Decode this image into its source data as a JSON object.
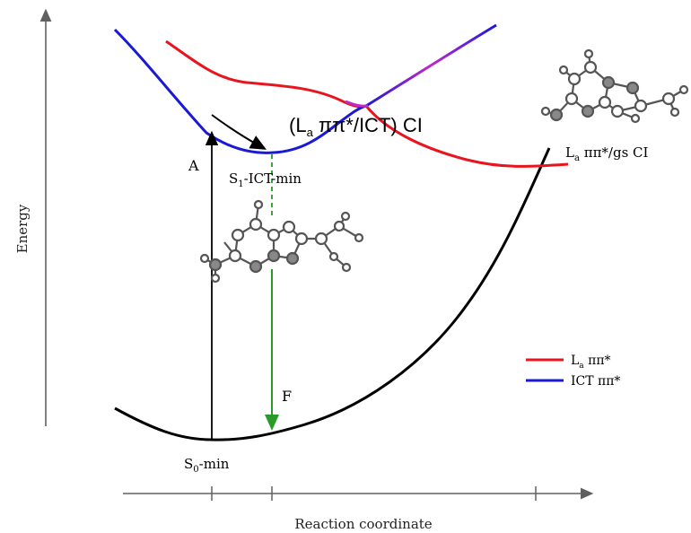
{
  "axes": {
    "y_label": "Energy",
    "x_label": "Reaction coordinate"
  },
  "labels": {
    "ci_la_ict_main": "(L",
    "ci_la_ict_sub": "a",
    "ci_la_ict_rest": " ππ*/ICT) CI",
    "s1_main": "S",
    "s1_sub": "1",
    "s1_rest": "-ICT-min",
    "s0_main": "S",
    "s0_sub": "0",
    "s0_rest": "-min",
    "la_gs_main": "L",
    "la_gs_sub": "a",
    "la_gs_rest": " ππ*/gs CI",
    "absorption": "A",
    "fluorescence": "F"
  },
  "legend": {
    "items": [
      {
        "main": "L",
        "sub": "a",
        "rest": " ππ*",
        "color": "#e8141e"
      },
      {
        "main": "",
        "sub": "",
        "rest": "ICT ππ*",
        "color": "#1a1ad6"
      }
    ]
  },
  "colors": {
    "la_curve": "#e8141e",
    "ict_curve": "#1a1ad6",
    "ground_curve": "#000000",
    "fluorescence_arrow": "#2a9a2a",
    "axis": "#606060"
  }
}
